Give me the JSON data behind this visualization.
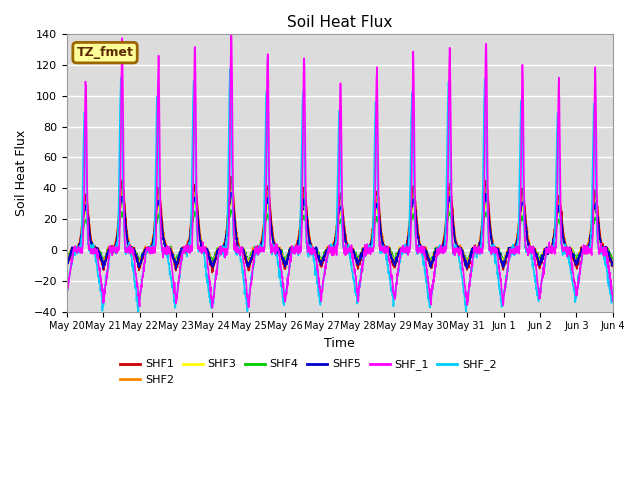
{
  "title": "Soil Heat Flux",
  "xlabel": "Time",
  "ylabel": "Soil Heat Flux",
  "ylim": [
    -40,
    140
  ],
  "yticks": [
    -40,
    -20,
    0,
    20,
    40,
    60,
    80,
    100,
    120,
    140
  ],
  "x_tick_labels": [
    "May 20",
    "May 21",
    "May 22",
    "May 23",
    "May 24",
    "May 25",
    "May 26",
    "May 27",
    "May 28",
    "May 29",
    "May 30",
    "May 31",
    "Jun 1",
    "Jun 2",
    "Jun 3",
    "Jun 4"
  ],
  "series": [
    "SHF1",
    "SHF2",
    "SHF3",
    "SHF4",
    "SHF5",
    "SHF_1",
    "SHF_2"
  ],
  "colors": {
    "SHF1": "#cc0000",
    "SHF2": "#ff8800",
    "SHF3": "#ffff00",
    "SHF4": "#00cc00",
    "SHF5": "#0000cc",
    "SHF_1": "#ff00ff",
    "SHF_2": "#00ccff"
  },
  "n_days": 15,
  "pts_per_day": 144,
  "annotation_text": "TZ_fmet",
  "annotation_bg": "#ffff99",
  "annotation_border": "#996600",
  "plot_bg": "#dcdcdc"
}
